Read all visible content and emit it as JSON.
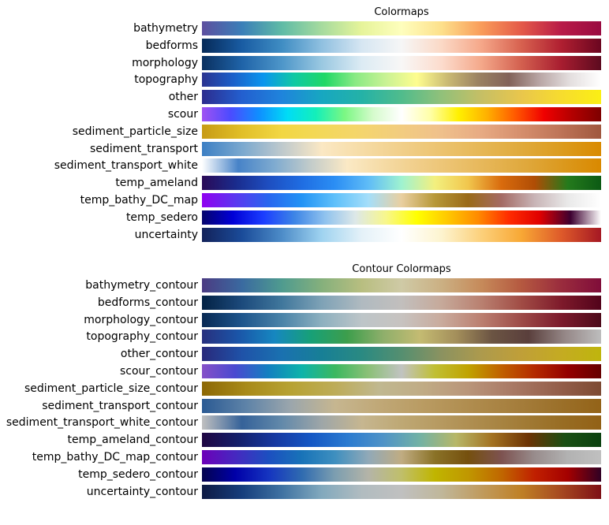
{
  "chart_data": [
    {
      "type": "colormap-swatches",
      "title": "Colormaps",
      "grid": false,
      "rows": [
        {
          "name": "bathymetry",
          "colors": [
            "#5d4f9f",
            "#3b7fb8",
            "#5fbba6",
            "#a6db9e",
            "#e6f49a",
            "#fefebd",
            "#fde08b",
            "#f99c5a",
            "#e45a49",
            "#b81b48",
            "#9a0b41"
          ]
        },
        {
          "name": "bedforms",
          "colors": [
            "#062a58",
            "#195ca3",
            "#3f8dc3",
            "#90c0e0",
            "#d6e6f2",
            "#f6f6f6",
            "#fbd9c6",
            "#f5a789",
            "#d7614f",
            "#b01f31",
            "#6b0620"
          ]
        },
        {
          "name": "morphology",
          "colors": [
            "#0a3060",
            "#1f63a8",
            "#4d96c9",
            "#9ac8e1",
            "#dcebf4",
            "#f8f7f6",
            "#fcdccd",
            "#f4a88a",
            "#d3604f",
            "#a81d30",
            "#5c0a1f"
          ]
        },
        {
          "name": "topography",
          "colors": [
            "#2b3390",
            "#1b5fc9",
            "#0a95ee",
            "#10c9a4",
            "#20d866",
            "#8aea84",
            "#caf294",
            "#fefd8f",
            "#caba73",
            "#9b8262",
            "#826259",
            "#b9a6a5",
            "#e4dfdf",
            "#ffffff"
          ]
        },
        {
          "name": "other",
          "colors": [
            "#2c2c8e",
            "#235fcf",
            "#1f84dc",
            "#17a7c1",
            "#24b2a7",
            "#50bc8c",
            "#91c17a",
            "#c6bf65",
            "#e9c64c",
            "#f7dc2e",
            "#fbef14"
          ]
        },
        {
          "name": "scour",
          "colors": [
            "#a052f2",
            "#4b4bff",
            "#0f8fff",
            "#00dcf6",
            "#14efb9",
            "#7bf783",
            "#d5fbcc",
            "#ffffff",
            "#ffffa8",
            "#fff000",
            "#ffb000",
            "#ff5800",
            "#f00000",
            "#b20000",
            "#7e0000"
          ]
        },
        {
          "name": "sediment_particle_size",
          "colors": [
            "#c79b15",
            "#e1bf28",
            "#f2d743",
            "#f3d859",
            "#f4d56d",
            "#f2cc80",
            "#efc08b",
            "#e7aa83",
            "#d58e6d",
            "#bd7357",
            "#a0583f"
          ]
        },
        {
          "name": "sediment_transport",
          "colors": [
            "#3c7fc4",
            "#7aa8cf",
            "#bec9cd",
            "#fbe8c4",
            "#f6dca6",
            "#f1cf8a",
            "#ecc36f",
            "#e6b755",
            "#e0aa3c",
            "#dc9c1f",
            "#d98a00"
          ]
        },
        {
          "name": "sediment_transport_white",
          "colors": [
            "#ffffff",
            "#4783c8",
            "#7fabd0",
            "#c3ccca",
            "#fbe9c5",
            "#f5dba5",
            "#f0cd88",
            "#ebc16d",
            "#e5b453",
            "#dfa73a",
            "#db981c",
            "#d98900"
          ]
        },
        {
          "name": "temp_ameland",
          "colors": [
            "#2a0a57",
            "#1a2b8c",
            "#1e4ec0",
            "#1f6de2",
            "#2b8ef4",
            "#5fbcf7",
            "#9ff2d0",
            "#f3f07f",
            "#f1c64d",
            "#d96b0d",
            "#b04d05",
            "#247a1c",
            "#0c5a14"
          ]
        },
        {
          "name": "temp_bathy_DC_map",
          "colors": [
            "#9000f0",
            "#5b38f0",
            "#2866ef",
            "#2293f5",
            "#5fc0fa",
            "#a4defa",
            "#e9cfa0",
            "#b79838",
            "#9a6a17",
            "#a46a64",
            "#c8b4b6",
            "#e9e9e9",
            "#ffffff"
          ]
        },
        {
          "name": "temp_sedero",
          "colors": [
            "#05046d",
            "#0000d6",
            "#1b3dff",
            "#3c84e6",
            "#8fc2ee",
            "#dde8e8",
            "#f8f78b",
            "#ffff00",
            "#ffc800",
            "#ff8a00",
            "#ff2b00",
            "#e00000",
            "#3d0030",
            "#ffffff"
          ]
        },
        {
          "name": "uncertainty",
          "colors": [
            "#13225a",
            "#1a4b99",
            "#4d8cc8",
            "#9fd3f0",
            "#e4f1f8",
            "#ffffff",
            "#fdf4cf",
            "#fcd07b",
            "#f8a835",
            "#de5a2a",
            "#a51823"
          ]
        }
      ]
    },
    {
      "type": "colormap-swatches",
      "title": "Contour Colormaps",
      "grid": false,
      "rows": [
        {
          "name": "bathymetry_contour",
          "colors": [
            "#4b3b82",
            "#3a6aa0",
            "#4f9b8f",
            "#85b07c",
            "#b8be80",
            "#cfcaa6",
            "#cbb083",
            "#c68a5a",
            "#b55940",
            "#9a2c3d",
            "#800d3a"
          ]
        },
        {
          "name": "bedforms_contour",
          "colors": [
            "#032244",
            "#1c4a7c",
            "#40779c",
            "#7ea2b6",
            "#b0bac0",
            "#c2bfbd",
            "#c6a99a",
            "#b98070",
            "#a14c45",
            "#7e1a2b",
            "#52031b"
          ]
        },
        {
          "name": "morphology_contour",
          "colors": [
            "#082953",
            "#1e558c",
            "#4983a8",
            "#8db0bf",
            "#bdc5c8",
            "#c7c3c0",
            "#c9ab9d",
            "#bb7f70",
            "#9d4b48",
            "#7c1a2c",
            "#4d0a1a"
          ]
        },
        {
          "name": "topography_contour",
          "colors": [
            "#28307e",
            "#1a55a8",
            "#1687c0",
            "#17a077",
            "#3d9e4c",
            "#8faf6b",
            "#c4bb72",
            "#a48f5b",
            "#6b5443",
            "#5a3f3c",
            "#958787",
            "#bdbdbd"
          ]
        },
        {
          "name": "other_contour",
          "colors": [
            "#29297b",
            "#1f52a8",
            "#1a71b0",
            "#177f96",
            "#2a8a82",
            "#558f70",
            "#8b9260",
            "#ad9a4d",
            "#c09f38",
            "#c4ab22",
            "#bfb50d"
          ]
        },
        {
          "name": "scour_contour",
          "colors": [
            "#8650c8",
            "#4a4ad0",
            "#1380c0",
            "#0db3aa",
            "#3bb85f",
            "#8bc077",
            "#c1c3c1",
            "#c0bf33",
            "#c0a300",
            "#c06000",
            "#b42a00",
            "#940000",
            "#660000"
          ]
        },
        {
          "name": "sediment_particle_size_contour",
          "colors": [
            "#8c6805",
            "#a88a1a",
            "#b7a233",
            "#bdac58",
            "#c0b890",
            "#c0ab85",
            "#b9957a",
            "#a97965",
            "#95604c",
            "#7d4a33"
          ]
        },
        {
          "name": "sediment_transport_contour",
          "colors": [
            "#2b5a93",
            "#5e83a8",
            "#9ba6ac",
            "#c6b690",
            "#c0a877",
            "#b99b62",
            "#b08d4f",
            "#a67f3e",
            "#9c712b",
            "#936318"
          ]
        },
        {
          "name": "sediment_transport_white_contour",
          "colors": [
            "#c0c0c0",
            "#356299",
            "#6289aa",
            "#9ea6a8",
            "#c6b690",
            "#bea874",
            "#b69960",
            "#ac8a4b",
            "#a27c37",
            "#986d24",
            "#926116"
          ]
        },
        {
          "name": "temp_ameland_contour",
          "colors": [
            "#1f0642",
            "#141f6a",
            "#1638a0",
            "#1557c4",
            "#2a7ad0",
            "#4f93c7",
            "#72b2a5",
            "#b7b768",
            "#a37221",
            "#6c3304",
            "#1a4f14",
            "#0b4210"
          ]
        },
        {
          "name": "temp_bathy_DC_map_contour",
          "colors": [
            "#6c00b8",
            "#4628c0",
            "#1c4fc0",
            "#1873b8",
            "#3e8fbf",
            "#91a9b8",
            "#c0ac82",
            "#8a7227",
            "#75500e",
            "#7d5250",
            "#988c8c",
            "#b2b2b2",
            "#c0c0c0"
          ]
        },
        {
          "name": "temp_sedero_contour",
          "colors": [
            "#04034f",
            "#0000a8",
            "#1534c0",
            "#2f6bb0",
            "#7c9eb0",
            "#b4b4a8",
            "#c0bf6a",
            "#c0b500",
            "#c09700",
            "#c06700",
            "#c02000",
            "#a40000",
            "#300024"
          ]
        },
        {
          "name": "uncertainty_contour",
          "colors": [
            "#0e1a44",
            "#163e7c",
            "#3f72a2",
            "#82a9bd",
            "#b1bcc0",
            "#c0c0c0",
            "#c0b79a",
            "#c09b5e",
            "#bf8026",
            "#a64820",
            "#7e1016"
          ]
        }
      ]
    }
  ]
}
